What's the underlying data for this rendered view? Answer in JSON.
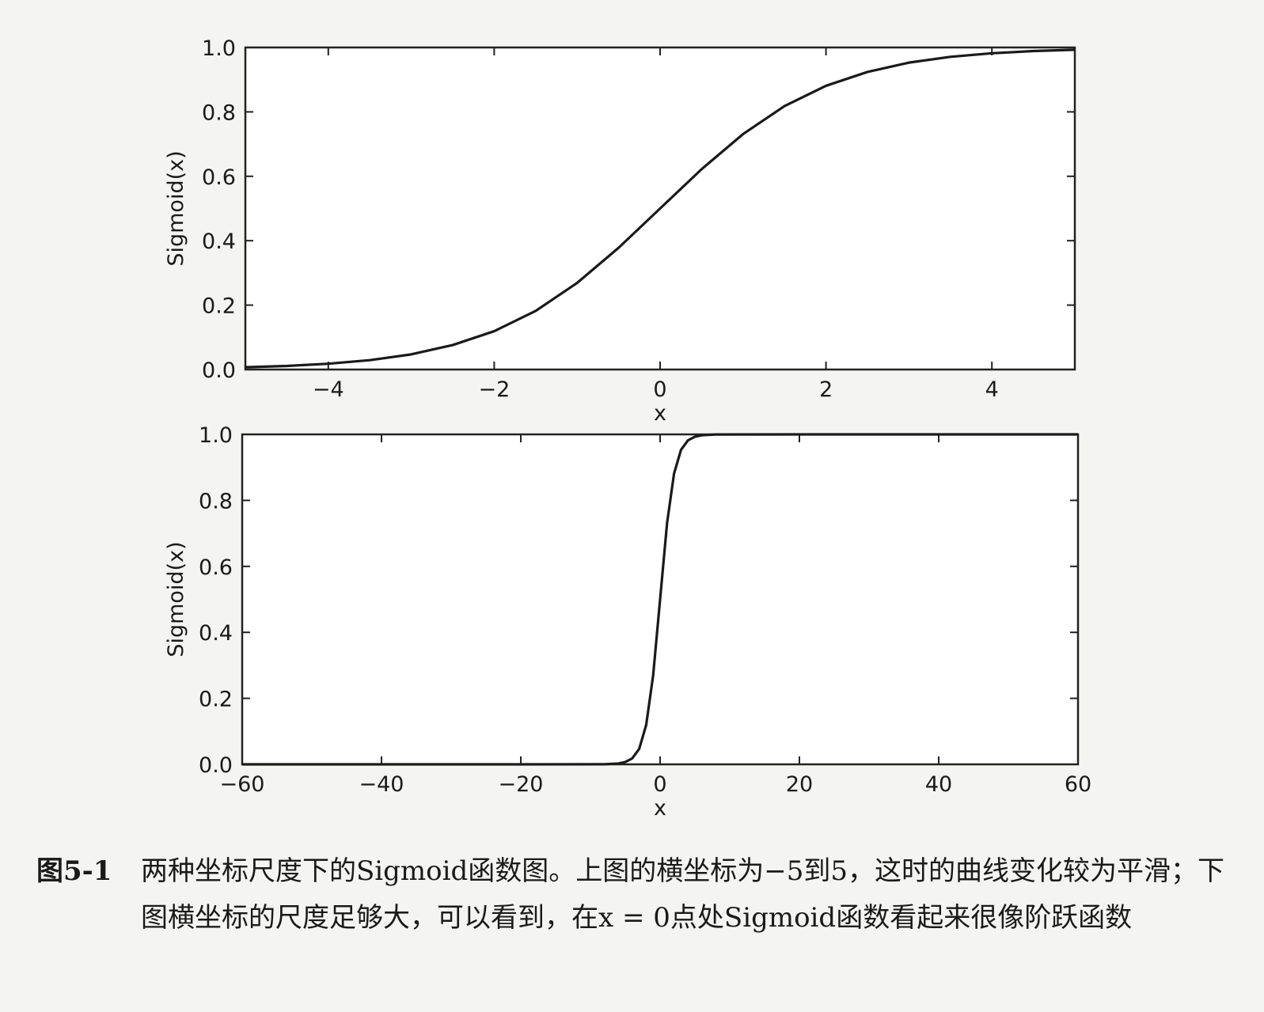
{
  "chart_data": [
    {
      "type": "line",
      "title": "",
      "xlabel": "x",
      "ylabel": "Sigmoid(x)",
      "xlim": [
        -5,
        5
      ],
      "ylim": [
        0.0,
        1.0
      ],
      "xticks": [
        -4,
        -2,
        0,
        2,
        4
      ],
      "xtick_labels": [
        "−4",
        "−2",
        "0",
        "2",
        "4"
      ],
      "yticks": [
        0.0,
        0.2,
        0.4,
        0.6,
        0.8,
        1.0
      ],
      "ytick_labels": [
        "0.0",
        "0.2",
        "0.4",
        "0.6",
        "0.8",
        "1.0"
      ],
      "grid": false,
      "series": [
        {
          "x": [
            -5,
            -4.5,
            -4,
            -3.5,
            -3,
            -2.5,
            -2,
            -1.5,
            -1,
            -0.5,
            0,
            0.5,
            1,
            1.5,
            2,
            2.5,
            3,
            3.5,
            4,
            4.5,
            5
          ],
          "y": [
            0.007,
            0.011,
            0.018,
            0.029,
            0.047,
            0.076,
            0.119,
            0.182,
            0.269,
            0.378,
            0.5,
            0.622,
            0.731,
            0.818,
            0.881,
            0.924,
            0.953,
            0.971,
            0.982,
            0.989,
            0.993
          ]
        }
      ]
    },
    {
      "type": "line",
      "title": "",
      "xlabel": "x",
      "ylabel": "Sigmoid(x)",
      "xlim": [
        -60,
        60
      ],
      "ylim": [
        0.0,
        1.0
      ],
      "xticks": [
        -60,
        -40,
        -20,
        0,
        20,
        40,
        60
      ],
      "xtick_labels": [
        "−60",
        "−40",
        "−20",
        "0",
        "20",
        "40",
        "60"
      ],
      "yticks": [
        0.0,
        0.2,
        0.4,
        0.6,
        0.8,
        1.0
      ],
      "ytick_labels": [
        "0.0",
        "0.2",
        "0.4",
        "0.6",
        "0.8",
        "1.0"
      ],
      "grid": false,
      "series": [
        {
          "x": [
            -60,
            -20,
            -8,
            -6,
            -5,
            -4,
            -3,
            -2,
            -1,
            0,
            1,
            2,
            3,
            4,
            5,
            6,
            8,
            20,
            60
          ],
          "y": [
            0.0,
            0.0,
            0.0003,
            0.0025,
            0.007,
            0.018,
            0.047,
            0.119,
            0.269,
            0.5,
            0.731,
            0.881,
            0.953,
            0.982,
            0.993,
            0.9975,
            0.9997,
            1.0,
            1.0
          ]
        }
      ]
    }
  ],
  "caption": {
    "number": "图5-1",
    "text": "两种坐标尺度下的Sigmoid函数图。上图的横坐标为−5到5，这时的曲线变化较为平滑；下图横坐标的尺度足够大，可以看到，在x = 0点处Sigmoid函数看起来很像阶跃函数"
  }
}
